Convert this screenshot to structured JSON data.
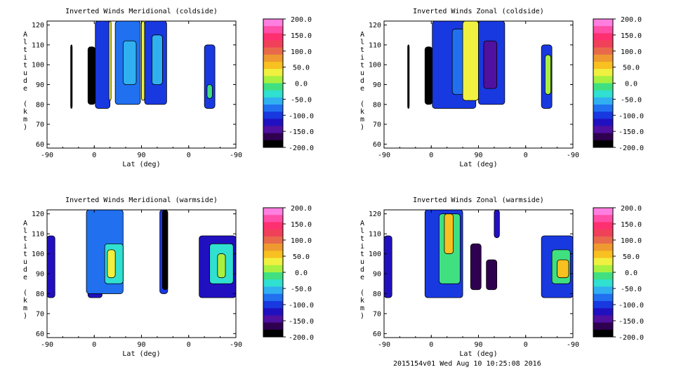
{
  "colorbar": {
    "labels": [
      "200.0",
      "150.0",
      "100.0",
      "50.0",
      "0.0",
      "-50.0",
      "-100.0",
      "-150.0",
      "-200.0"
    ],
    "colors": [
      "#ff7fe0",
      "#ff4fa8",
      "#ff3070",
      "#f0405a",
      "#e86a4a",
      "#ee9a30",
      "#f8c020",
      "#f0f040",
      "#a8f040",
      "#40e080",
      "#30e0d0",
      "#30b0f0",
      "#2070f0",
      "#1838e0",
      "#2010c0",
      "#5010a0",
      "#300050",
      "#000000"
    ]
  },
  "footer": "2015154v01 Wed Aug 10 10:25:08 2016",
  "chart_data": [
    {
      "type": "heatmap",
      "title": "Inverted Winds Meridional (coldside)",
      "xlabel": "Lat (deg)",
      "ylabel": "Altitude (km)",
      "x_ticks": [
        "-90",
        "0",
        "90",
        "0",
        "-90"
      ],
      "y_ticks": [
        "60",
        "70",
        "80",
        "90",
        "100",
        "110",
        "120"
      ],
      "ylim": [
        58,
        122
      ],
      "zlim": [
        -200,
        200
      ],
      "cells": [
        {
          "x0": -45,
          "x1": -42,
          "y0": 78,
          "y1": 110,
          "v": -200
        },
        {
          "x0": -12,
          "x1": 2,
          "y0": 80,
          "y1": 109,
          "v": -195
        },
        {
          "x0": 2,
          "x1": 30,
          "y0": 78,
          "y1": 122,
          "v": -110
        },
        {
          "x0": 28,
          "x1": 32,
          "y0": 82,
          "y1": 122,
          "v": 40
        },
        {
          "x0": 40,
          "x1": 88,
          "y0": 80,
          "y1": 122,
          "v": -80
        },
        {
          "x0": 55,
          "x1": 80,
          "y0": 90,
          "y1": 112,
          "v": -50
        },
        {
          "x0": 90,
          "x1": 96,
          "y0": 82,
          "y1": 122,
          "v": 30
        },
        {
          "x0": 96,
          "x1": 138,
          "y0": 80,
          "y1": 122,
          "v": -105
        },
        {
          "x0": 110,
          "x1": 130,
          "y0": 90,
          "y1": 115,
          "v": -65
        },
        {
          "x0": 210,
          "x1": 230,
          "y0": 78,
          "y1": 110,
          "v": -100
        },
        {
          "x0": 215,
          "x1": 225,
          "y0": 83,
          "y1": 90,
          "v": -20
        }
      ]
    },
    {
      "type": "heatmap",
      "title": "Inverted Winds Zonal (coldside)",
      "xlabel": "Lat (deg)",
      "ylabel": "Altitude (km)",
      "x_ticks": [
        "-90",
        "0",
        "90",
        "0",
        "-90"
      ],
      "y_ticks": [
        "60",
        "70",
        "80",
        "90",
        "100",
        "110",
        "120"
      ],
      "ylim": [
        58,
        122
      ],
      "zlim": [
        -200,
        200
      ],
      "cells": [
        {
          "x0": -45,
          "x1": -42,
          "y0": 78,
          "y1": 110,
          "v": -200
        },
        {
          "x0": -12,
          "x1": 2,
          "y0": 80,
          "y1": 109,
          "v": -195
        },
        {
          "x0": 2,
          "x1": 85,
          "y0": 78,
          "y1": 122,
          "v": -110
        },
        {
          "x0": 40,
          "x1": 80,
          "y0": 85,
          "y1": 118,
          "v": -80
        },
        {
          "x0": 60,
          "x1": 90,
          "y0": 82,
          "y1": 122,
          "v": 30
        },
        {
          "x0": 90,
          "x1": 140,
          "y0": 80,
          "y1": 122,
          "v": -105
        },
        {
          "x0": 100,
          "x1": 125,
          "y0": 88,
          "y1": 112,
          "v": -150
        },
        {
          "x0": 210,
          "x1": 230,
          "y0": 78,
          "y1": 110,
          "v": -95
        },
        {
          "x0": 217,
          "x1": 228,
          "y0": 85,
          "y1": 105,
          "v": 20
        }
      ]
    },
    {
      "type": "heatmap",
      "title": "Inverted Winds Meridional (warmside)",
      "xlabel": "Lat (deg)",
      "ylabel": "Altitude (km)",
      "x_ticks": [
        "-90",
        "0",
        "90",
        "0",
        "-90"
      ],
      "y_ticks": [
        "60",
        "70",
        "80",
        "90",
        "100",
        "110",
        "120"
      ],
      "ylim": [
        58,
        122
      ],
      "zlim": [
        -200,
        200
      ],
      "cells": [
        {
          "x0": -90,
          "x1": -75,
          "y0": 78,
          "y1": 109,
          "v": -120
        },
        {
          "x0": -12,
          "x1": 15,
          "y0": 78,
          "y1": 109,
          "v": -120
        },
        {
          "x0": -5,
          "x1": 10,
          "y0": 85,
          "y1": 100,
          "v": -200
        },
        {
          "x0": -15,
          "x1": 55,
          "y0": 80,
          "y1": 122,
          "v": -85
        },
        {
          "x0": 20,
          "x1": 55,
          "y0": 85,
          "y1": 105,
          "v": -30
        },
        {
          "x0": 25,
          "x1": 40,
          "y0": 88,
          "y1": 102,
          "v": 30
        },
        {
          "x0": 125,
          "x1": 140,
          "y0": 80,
          "y1": 122,
          "v": -95
        },
        {
          "x0": 130,
          "x1": 140,
          "y0": 82,
          "y1": 122,
          "v": -200
        },
        {
          "x0": 200,
          "x1": 270,
          "y0": 78,
          "y1": 109,
          "v": -115
        },
        {
          "x0": 220,
          "x1": 265,
          "y0": 85,
          "y1": 105,
          "v": -30
        },
        {
          "x0": 235,
          "x1": 250,
          "y0": 88,
          "y1": 100,
          "v": 20
        }
      ]
    },
    {
      "type": "heatmap",
      "title": "Inverted Winds Zonal (warmside)",
      "xlabel": "Lat (deg)",
      "ylabel": "Altitude (km)",
      "x_ticks": [
        "-90",
        "0",
        "90",
        "0",
        "-90"
      ],
      "y_ticks": [
        "60",
        "70",
        "80",
        "90",
        "100",
        "110",
        "120"
      ],
      "ylim": [
        58,
        122
      ],
      "zlim": [
        -200,
        200
      ],
      "cells": [
        {
          "x0": -90,
          "x1": -75,
          "y0": 78,
          "y1": 109,
          "v": -120
        },
        {
          "x0": -12,
          "x1": 60,
          "y0": 78,
          "y1": 122,
          "v": -110
        },
        {
          "x0": 15,
          "x1": 55,
          "y0": 85,
          "y1": 120,
          "v": -20
        },
        {
          "x0": 25,
          "x1": 42,
          "y0": 100,
          "y1": 120,
          "v": 60
        },
        {
          "x0": 75,
          "x1": 95,
          "y0": 82,
          "y1": 105,
          "v": -160
        },
        {
          "x0": 105,
          "x1": 125,
          "y0": 82,
          "y1": 97,
          "v": -160
        },
        {
          "x0": 120,
          "x1": 130,
          "y0": 108,
          "y1": 122,
          "v": -130
        },
        {
          "x0": 210,
          "x1": 270,
          "y0": 78,
          "y1": 109,
          "v": -110
        },
        {
          "x0": 230,
          "x1": 265,
          "y0": 85,
          "y1": 102,
          "v": 0
        },
        {
          "x0": 240,
          "x1": 262,
          "y0": 88,
          "y1": 97,
          "v": 60
        }
      ]
    }
  ]
}
